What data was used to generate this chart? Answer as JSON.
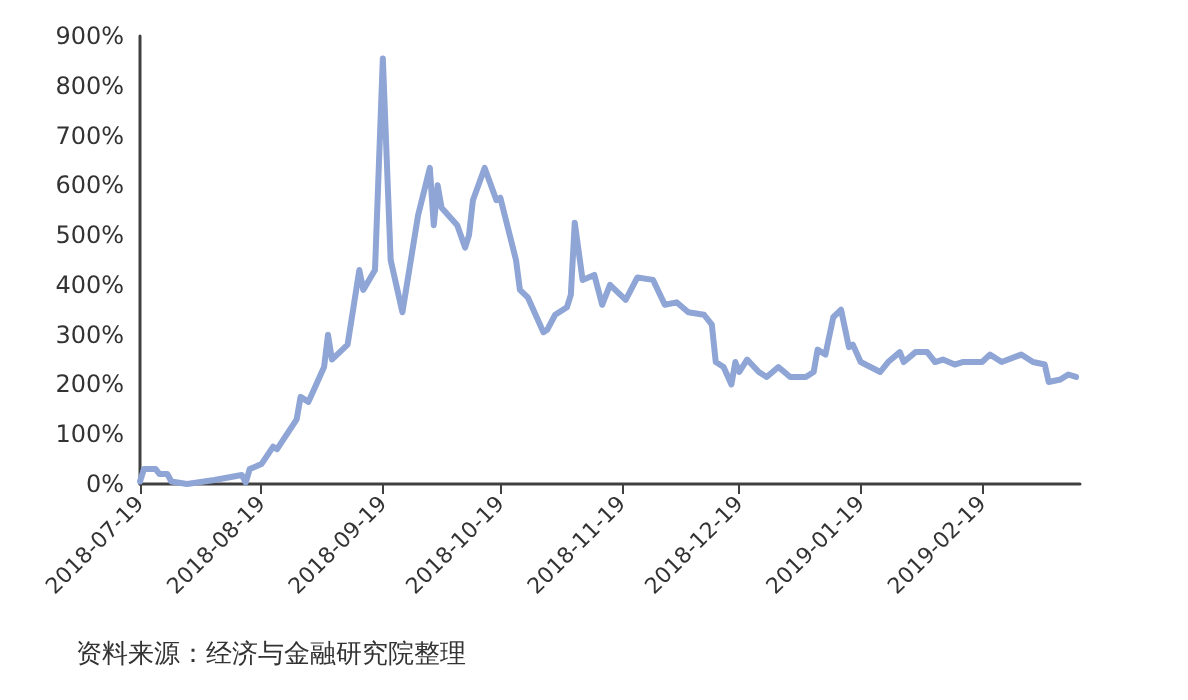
{
  "chart_data": {
    "type": "line",
    "x": [
      "2018-07-19",
      "2018-07-20",
      "2018-07-23",
      "2018-07-24",
      "2018-07-26",
      "2018-07-27",
      "2018-07-31",
      "2018-08-07",
      "2018-08-14",
      "2018-08-15",
      "2018-08-16",
      "2018-08-19",
      "2018-08-22",
      "2018-08-23",
      "2018-08-28",
      "2018-08-29",
      "2018-08-31",
      "2018-09-02",
      "2018-09-04",
      "2018-09-05",
      "2018-09-06",
      "2018-09-10",
      "2018-09-13",
      "2018-09-14",
      "2018-09-17",
      "2018-09-19",
      "2018-09-21",
      "2018-09-24",
      "2018-09-28",
      "2018-10-01",
      "2018-10-02",
      "2018-10-03",
      "2018-10-04",
      "2018-10-08",
      "2018-10-10",
      "2018-10-11",
      "2018-10-12",
      "2018-10-15",
      "2018-10-18",
      "2018-10-19",
      "2018-10-23",
      "2018-10-24",
      "2018-10-26",
      "2018-10-30",
      "2018-10-31",
      "2018-11-02",
      "2018-11-05",
      "2018-11-06",
      "2018-11-07",
      "2018-11-09",
      "2018-11-12",
      "2018-11-14",
      "2018-11-16",
      "2018-11-20",
      "2018-11-23",
      "2018-11-27",
      "2018-11-30",
      "2018-12-03",
      "2018-12-06",
      "2018-12-10",
      "2018-12-12",
      "2018-12-13",
      "2018-12-15",
      "2018-12-17",
      "2018-12-18",
      "2018-12-19",
      "2018-12-21",
      "2018-12-24",
      "2018-12-26",
      "2018-12-29",
      "2019-01-01",
      "2019-01-05",
      "2019-01-07",
      "2019-01-08",
      "2019-01-10",
      "2019-01-12",
      "2019-01-14",
      "2019-01-16",
      "2019-01-17",
      "2019-01-19",
      "2019-01-24",
      "2019-01-26",
      "2019-01-29",
      "2019-01-30",
      "2019-02-02",
      "2019-02-05",
      "2019-02-07",
      "2019-02-09",
      "2019-02-12",
      "2019-02-14",
      "2019-02-19",
      "2019-02-21",
      "2019-02-24",
      "2019-03-01",
      "2019-03-04",
      "2019-03-07",
      "2019-03-08",
      "2019-03-11",
      "2019-03-13",
      "2019-03-15"
    ],
    "series": [
      {
        "color": "#8ea5d6",
        "values": [
          5,
          30,
          30,
          20,
          20,
          5,
          0,
          8,
          18,
          3,
          30,
          40,
          75,
          70,
          130,
          175,
          165,
          200,
          235,
          300,
          250,
          280,
          430,
          390,
          430,
          855,
          450,
          345,
          540,
          635,
          520,
          600,
          555,
          520,
          475,
          500,
          570,
          635,
          570,
          575,
          450,
          390,
          375,
          305,
          310,
          340,
          355,
          380,
          525,
          410,
          420,
          360,
          400,
          370,
          415,
          410,
          360,
          365,
          345,
          340,
          320,
          245,
          235,
          200,
          245,
          225,
          250,
          225,
          215,
          235,
          215,
          215,
          225,
          270,
          260,
          335,
          350,
          275,
          280,
          245,
          225,
          245,
          265,
          245,
          265,
          265,
          245,
          250,
          240,
          245,
          245,
          260,
          245,
          260,
          245,
          240,
          205,
          210,
          220,
          215
        ]
      }
    ],
    "xlim": [
      "2018-07-19",
      "2019-03-16"
    ],
    "xticks": [
      "2018-07-19",
      "2018-08-19",
      "2018-09-19",
      "2018-10-19",
      "2018-11-19",
      "2018-12-19",
      "2019-01-19",
      "2019-02-19"
    ],
    "ylim": [
      0,
      900
    ],
    "yticks": [
      {
        "value": 0,
        "label": "0%"
      },
      {
        "value": 100,
        "label": "100%"
      },
      {
        "value": 200,
        "label": "200%"
      },
      {
        "value": 300,
        "label": "300%"
      },
      {
        "value": 400,
        "label": "400%"
      },
      {
        "value": 500,
        "label": "500%"
      },
      {
        "value": 600,
        "label": "600%"
      },
      {
        "value": 700,
        "label": "700%"
      },
      {
        "value": 800,
        "label": "800%"
      },
      {
        "value": 900,
        "label": "900%"
      }
    ],
    "grid": false,
    "marker": "none",
    "line_style": "solid",
    "annotations": [
      "资料来源：经济与金融研究院整理"
    ]
  }
}
